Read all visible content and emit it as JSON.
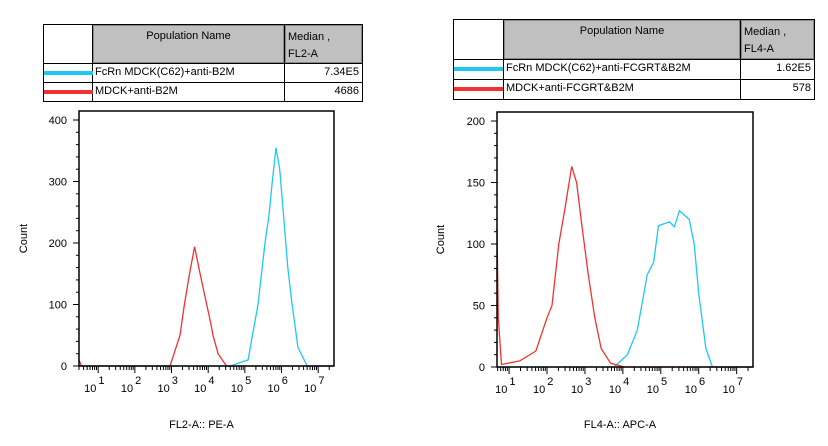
{
  "tables": [
    {
      "header": {
        "name": "Population Name",
        "median_line1": "Median ,",
        "median_line2": "FL2-A"
      },
      "rows": [
        {
          "name": "FcRn MDCK(C62)+anti-B2M",
          "median": "7.34E5",
          "color": "#1ec8f0"
        },
        {
          "name": "MDCK+anti-B2M",
          "median": "4686",
          "color": "#f03232"
        }
      ]
    },
    {
      "header": {
        "name": "Population Name",
        "median_line1": "Median ,",
        "median_line2": "FL4-A"
      },
      "rows": [
        {
          "name": "FcRn MDCK(C62)+anti-FCGRT&B2M",
          "median": "1.62E5",
          "color": "#1ec8f0"
        },
        {
          "name": "MDCK+anti-FCGRT&B2M",
          "median": "578",
          "color": "#f03232"
        }
      ]
    }
  ],
  "chart_data": [
    {
      "type": "line",
      "xlabel": "FL2-A:: PE-A",
      "ylabel": "Count",
      "xscale": "log",
      "xlim": [
        3,
        27000000.0
      ],
      "ylim": [
        0,
        400
      ],
      "yticks": [
        0,
        100,
        200,
        300,
        400
      ],
      "xtick_base": "10",
      "xtick_exponents": [
        "1",
        "2",
        "3",
        "4",
        "5",
        "6",
        "7"
      ],
      "grid": false,
      "series": [
        {
          "color": "#1ec8f0",
          "points": [
            [
              3,
              0
            ],
            [
              39800.0,
              0
            ],
            [
              123000.0,
              10
            ],
            [
              229000.0,
              100
            ],
            [
              355000.0,
              200
            ],
            [
              457000.0,
              245
            ],
            [
              562000.0,
              300
            ],
            [
              708000.0,
              355
            ],
            [
              891000.0,
              320
            ],
            [
              1120000.0,
              250
            ],
            [
              1480000.0,
              160
            ],
            [
              1950000.0,
              100
            ],
            [
              2820000.0,
              30
            ],
            [
              5010000.0,
              0
            ],
            [
              27000000.0,
              0
            ]
          ]
        },
        {
          "color": "#f03232",
          "points": [
            [
              3,
              10
            ],
            [
              3.5,
              0
            ],
            [
              910.0,
              0
            ],
            [
              1700.0,
              50
            ],
            [
              2240.0,
              100
            ],
            [
              3090.0,
              150
            ],
            [
              4270.0,
              194
            ],
            [
              6030.0,
              150
            ],
            [
              9120.0,
              100
            ],
            [
              11700.0,
              70
            ],
            [
              13500.0,
              50
            ],
            [
              18600.0,
              20
            ],
            [
              31600.0,
              0
            ],
            [
              27000000.0,
              0
            ]
          ]
        }
      ]
    },
    {
      "type": "line",
      "xlabel": "FL4-A:: APC-A",
      "ylabel": "Count",
      "xscale": "log",
      "xlim": [
        4.8,
        27000000.0
      ],
      "ylim": [
        0,
        200
      ],
      "yticks": [
        0,
        50,
        100,
        150,
        200
      ],
      "xtick_base": "10",
      "xtick_exponents": [
        "1",
        "2",
        "3",
        "4",
        "5",
        "6",
        "7"
      ],
      "grid": false,
      "series": [
        {
          "color": "#1ec8f0",
          "points": [
            [
              4.8,
              0
            ],
            [
              5890.0,
              0
            ],
            [
              13200.0,
              10
            ],
            [
              24000.0,
              30
            ],
            [
              43700.0,
              75
            ],
            [
              64600.0,
              85
            ],
            [
              87100.0,
              115
            ],
            [
              170000.0,
              118
            ],
            [
              229000.0,
              114
            ],
            [
              309000.0,
              127
            ],
            [
              562000.0,
              120
            ],
            [
              759000.0,
              100
            ],
            [
              1000000.0,
              60
            ],
            [
              1550000.0,
              15
            ],
            [
              2290000.0,
              0
            ],
            [
              27000000.0,
              0
            ]
          ]
        },
        {
          "color": "#f03232",
          "points": [
            [
              4.8,
              113
            ],
            [
              5.2,
              40
            ],
            [
              6.3,
              2
            ],
            [
              19,
              5
            ],
            [
              51,
              13
            ],
            [
              100,
              40
            ],
            [
              135,
              50
            ],
            [
              204,
              100
            ],
            [
              302,
              130
            ],
            [
              447,
              163
            ],
            [
              603,
              150
            ],
            [
              794,
              120
            ],
            [
              1230,
              75
            ],
            [
              1820,
              40
            ],
            [
              2690,
              15
            ],
            [
              4790,
              3
            ],
            [
              11000.0,
              0
            ],
            [
              27000000.0,
              0
            ]
          ]
        }
      ]
    }
  ]
}
